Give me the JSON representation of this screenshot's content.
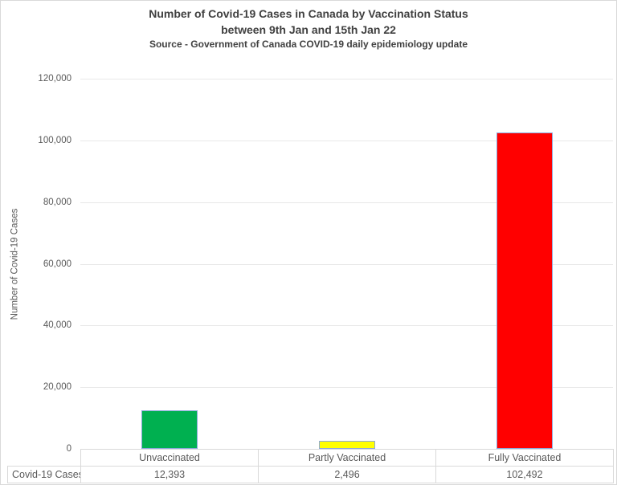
{
  "title": {
    "line1": "Number of Covid-19 Cases in Canada by Vaccination Status",
    "line2": "between 9th Jan and 15th Jan 22",
    "source": "Source - Government of Canada COVID-19 daily epidemiology update"
  },
  "chart_data": {
    "type": "bar",
    "title": "Number of Covid-19 Cases in Canada by Vaccination Status between 9th Jan and 15th Jan 22",
    "subtitle": "Source - Government of Canada COVID-19 daily epidemiology update",
    "categories": [
      "Unvaccinated",
      "Partly Vaccinated",
      "Fully Vaccinated"
    ],
    "values": [
      12393,
      2496,
      102492
    ],
    "value_labels": [
      "12,393",
      "2,496",
      "102,492"
    ],
    "bar_colors": [
      "#00B050",
      "#FFFF00",
      "#FF0000"
    ],
    "bar_border_color": "#8EA9DB",
    "xlabel": "",
    "ylabel": "Number of Covid-19 Cases",
    "ylim": [
      0,
      120000
    ],
    "ytick_step": 20000,
    "ytick_labels": [
      "0",
      "20,000",
      "40,000",
      "60,000",
      "80,000",
      "100,000",
      "120,000"
    ],
    "grid": true,
    "legend": false,
    "data_table": {
      "row_label": "Covid-19 Cases",
      "values": [
        "12,393",
        "2,496",
        "102,492"
      ]
    }
  },
  "colors": {
    "title_text": "#404040",
    "axis_text": "#595959",
    "gridline": "#E8E8E8",
    "table_border": "#D9D9D9",
    "chart_border": "#D9D9D9",
    "background": "#FFFFFF"
  }
}
